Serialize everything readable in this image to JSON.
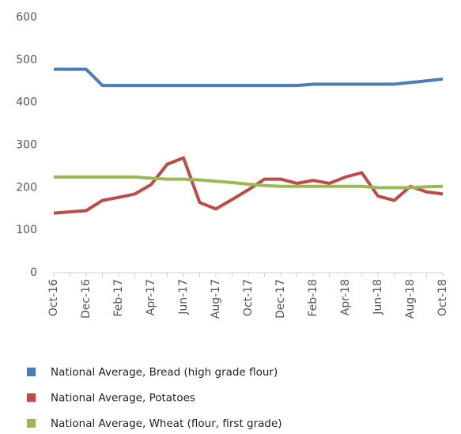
{
  "chart_data": {
    "type": "line",
    "categories": [
      "Oct-16",
      null,
      "Dec-16",
      null,
      "Feb-17",
      null,
      "Apr-17",
      null,
      "Jun-17",
      null,
      "Aug-17",
      null,
      "Oct-17",
      null,
      "Dec-17",
      null,
      "Feb-18",
      null,
      "Apr-18",
      null,
      "Jun-18",
      null,
      "Aug-18",
      null,
      "Oct-18"
    ],
    "series": [
      {
        "name": "National Average, Bread (high grade flour)",
        "color": "#4a7ebb",
        "values": [
          478,
          478,
          478,
          440,
          440,
          440,
          440,
          440,
          440,
          440,
          440,
          440,
          440,
          440,
          440,
          440,
          443,
          443,
          443,
          443,
          443,
          443,
          447,
          451,
          455
        ]
      },
      {
        "name": "National Average, Potatoes",
        "color": "#be4b48",
        "values": [
          140,
          143,
          146,
          170,
          177,
          185,
          207,
          255,
          270,
          165,
          150,
          172,
          195,
          220,
          220,
          210,
          217,
          210,
          225,
          235,
          180,
          170,
          203,
          190,
          185
        ]
      },
      {
        "name": "National Average, Wheat (flour, first grade)",
        "color": "#98b954",
        "values": [
          225,
          225,
          225,
          225,
          225,
          225,
          222,
          220,
          220,
          218,
          215,
          212,
          208,
          205,
          203,
          203,
          203,
          203,
          203,
          203,
          200,
          200,
          200,
          202,
          203
        ]
      }
    ],
    "ylim": [
      0,
      600
    ],
    "yticks": [
      0,
      100,
      200,
      300,
      400,
      500,
      600
    ],
    "grid": false,
    "legend": "bottom"
  }
}
